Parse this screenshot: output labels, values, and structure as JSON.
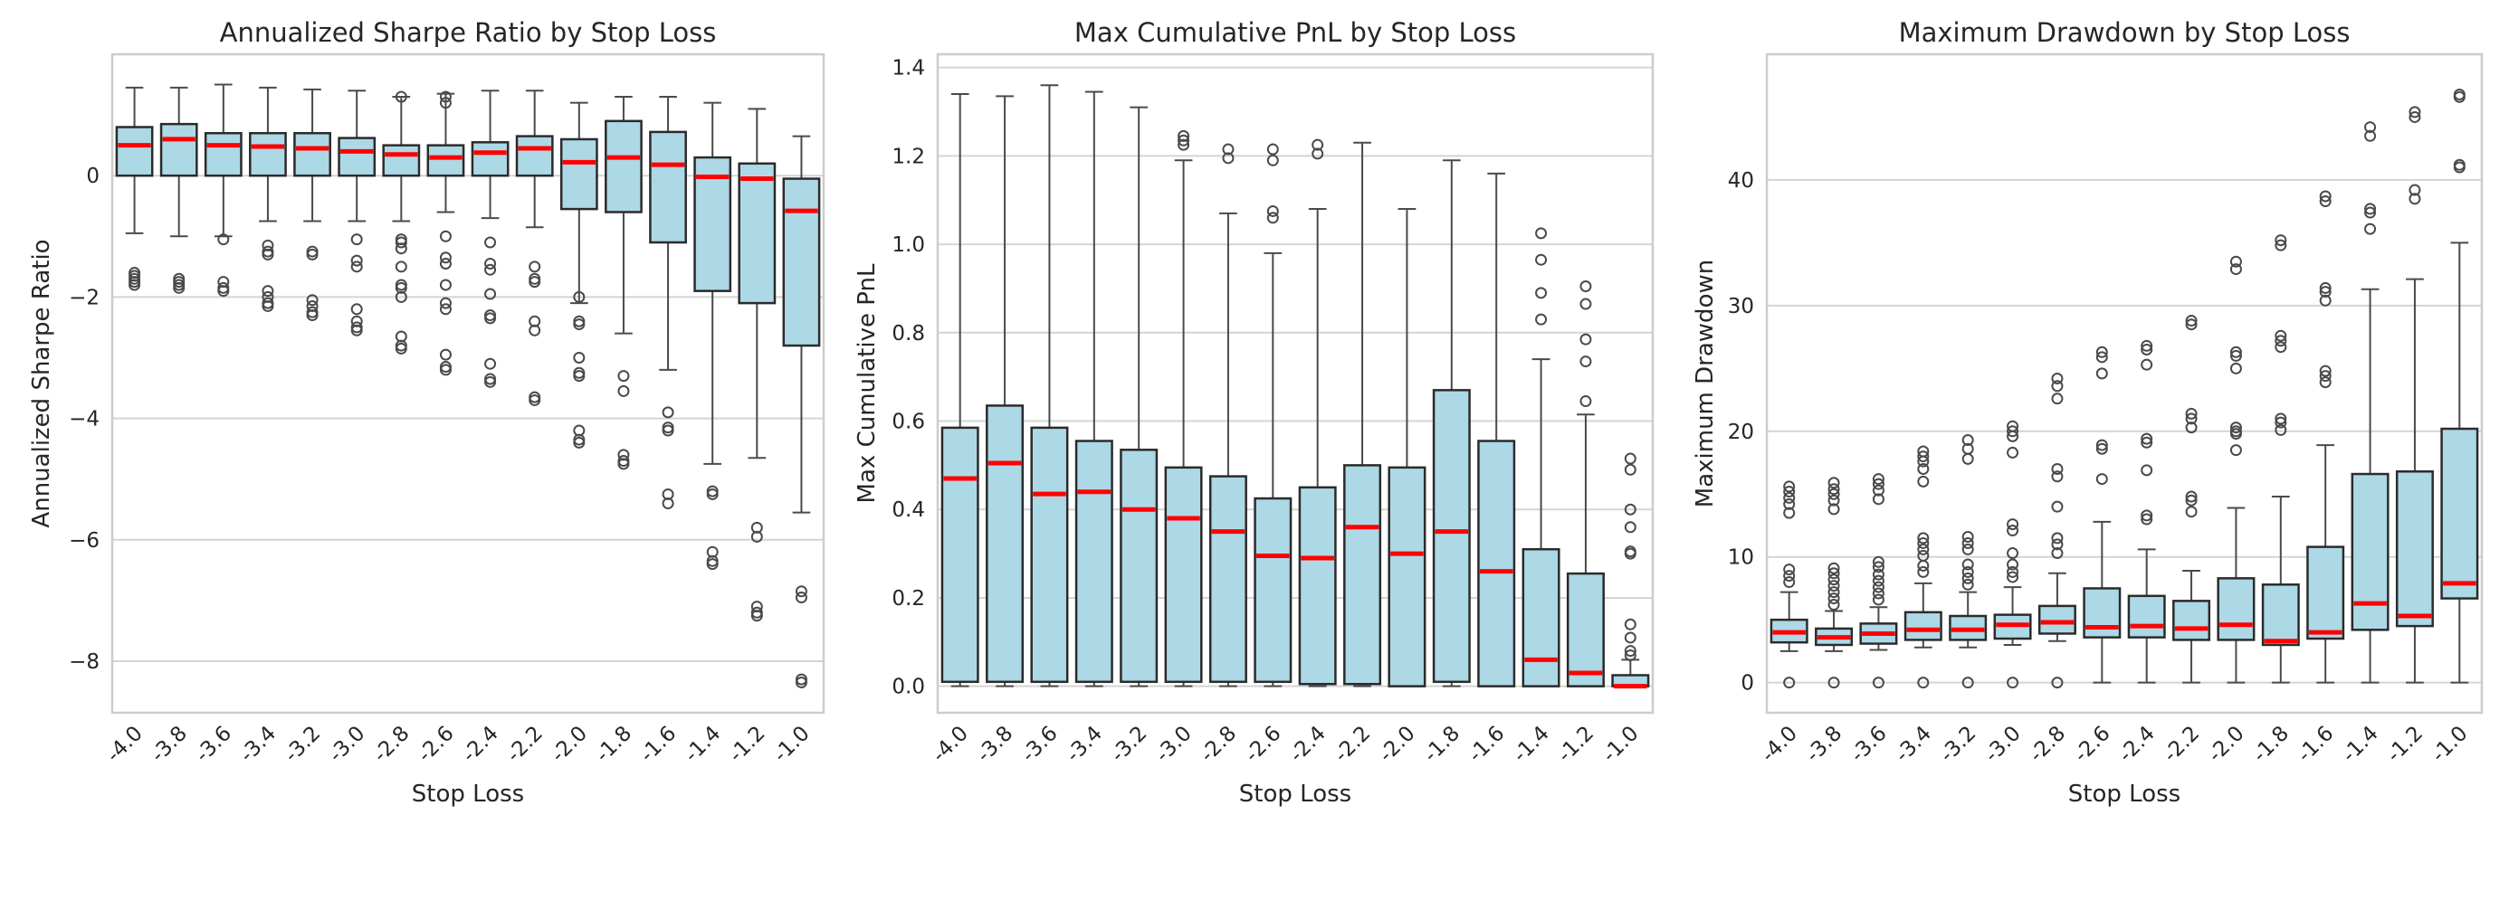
{
  "chart_data": [
    {
      "type": "box",
      "title": "Annualized Sharpe Ratio by Stop Loss",
      "xlabel": "Stop Loss",
      "ylabel": "Annualized Sharpe Ratio",
      "ylim": [
        -8.85,
        2.0
      ],
      "yticks": [
        -8,
        -6,
        -4,
        -2,
        0
      ],
      "ytick_labels": [
        "−8",
        "−6",
        "−4",
        "−2",
        "0"
      ],
      "categories": [
        "-4.0",
        "-3.8",
        "-3.6",
        "-3.4",
        "-3.2",
        "-3.0",
        "-2.8",
        "-2.6",
        "-2.4",
        "-2.2",
        "-2.0",
        "-1.8",
        "-1.6",
        "-1.4",
        "-1.2",
        "-1.0"
      ],
      "boxes": [
        {
          "whislo": -0.95,
          "q1": 0.0,
          "med": 0.5,
          "q3": 0.8,
          "whishi": 1.45,
          "fliers": [
            -1.6,
            -1.65,
            -1.7,
            -1.75,
            -1.8
          ]
        },
        {
          "whislo": -1.0,
          "q1": 0.0,
          "med": 0.6,
          "q3": 0.85,
          "whishi": 1.45,
          "fliers": [
            -1.7,
            -1.75,
            -1.8,
            -1.85
          ]
        },
        {
          "whislo": -1.0,
          "q1": 0.0,
          "med": 0.5,
          "q3": 0.7,
          "whishi": 1.5,
          "fliers": [
            -1.05,
            -1.75,
            -1.85,
            -1.9
          ]
        },
        {
          "whislo": -0.75,
          "q1": 0.0,
          "med": 0.48,
          "q3": 0.7,
          "whishi": 1.45,
          "fliers": [
            -1.15,
            -1.25,
            -1.3,
            -1.9,
            -2.0,
            -2.1,
            -2.15
          ]
        },
        {
          "whislo": -0.75,
          "q1": 0.0,
          "med": 0.45,
          "q3": 0.7,
          "whishi": 1.42,
          "fliers": [
            -1.25,
            -1.3,
            -2.05,
            -2.15,
            -2.25,
            -2.3
          ]
        },
        {
          "whislo": -0.75,
          "q1": 0.0,
          "med": 0.4,
          "q3": 0.62,
          "whishi": 1.4,
          "fliers": [
            -1.05,
            -1.4,
            -1.5,
            -2.2,
            -2.4,
            -2.5,
            -2.55
          ]
        },
        {
          "whislo": -0.75,
          "q1": 0.0,
          "med": 0.35,
          "q3": 0.5,
          "whishi": 1.3,
          "fliers": [
            1.3,
            -1.05,
            -1.1,
            -1.2,
            -1.5,
            -1.8,
            -1.85,
            -2.0,
            -2.65,
            -2.8,
            -2.85
          ]
        },
        {
          "whislo": -0.6,
          "q1": 0.0,
          "med": 0.3,
          "q3": 0.5,
          "whishi": 1.35,
          "fliers": [
            1.3,
            1.2,
            -1.0,
            -1.35,
            -1.45,
            -1.8,
            -2.1,
            -2.2,
            -2.95,
            -3.15,
            -3.2
          ]
        },
        {
          "whislo": -0.7,
          "q1": 0.0,
          "med": 0.38,
          "q3": 0.55,
          "whishi": 1.4,
          "fliers": [
            -1.1,
            -1.45,
            -1.55,
            -1.95,
            -2.3,
            -2.35,
            -3.1,
            -3.35,
            -3.4
          ]
        },
        {
          "whislo": -0.85,
          "q1": 0.0,
          "med": 0.45,
          "q3": 0.65,
          "whishi": 1.4,
          "fliers": [
            -1.5,
            -1.7,
            -1.75,
            -2.4,
            -2.55,
            -3.65,
            -3.7
          ]
        },
        {
          "whislo": -2.1,
          "q1": -0.55,
          "med": 0.22,
          "q3": 0.6,
          "whishi": 1.2,
          "fliers": [
            -2.0,
            -2.4,
            -2.45,
            -3.0,
            -3.25,
            -3.3,
            -4.2,
            -4.35,
            -4.4
          ]
        },
        {
          "whislo": -2.6,
          "q1": -0.6,
          "med": 0.3,
          "q3": 0.9,
          "whishi": 1.3,
          "fliers": [
            -3.3,
            -3.55,
            -4.6,
            -4.7,
            -4.75
          ]
        },
        {
          "whislo": -3.2,
          "q1": -1.1,
          "med": 0.18,
          "q3": 0.72,
          "whishi": 1.3,
          "fliers": [
            -3.9,
            -4.15,
            -4.2,
            -5.25,
            -5.4
          ]
        },
        {
          "whislo": -4.75,
          "q1": -1.9,
          "med": -0.02,
          "q3": 0.3,
          "whishi": 1.2,
          "fliers": [
            -5.2,
            -5.25,
            -6.2,
            -6.35,
            -6.4
          ]
        },
        {
          "whislo": -4.65,
          "q1": -2.1,
          "med": -0.05,
          "q3": 0.2,
          "whishi": 1.1,
          "fliers": [
            -5.8,
            -5.95,
            -7.1,
            -7.2,
            -7.25
          ]
        },
        {
          "whislo": -5.55,
          "q1": -2.8,
          "med": -0.58,
          "q3": -0.05,
          "whishi": 0.65,
          "fliers": [
            -6.85,
            -6.95,
            -8.3,
            -8.35
          ]
        }
      ]
    },
    {
      "type": "box",
      "title": "Max Cumulative PnL by Stop Loss",
      "xlabel": "Stop Loss",
      "ylabel": "Max Cumulative PnL",
      "ylim": [
        -0.06,
        1.43
      ],
      "yticks": [
        0.0,
        0.2,
        0.4,
        0.6,
        0.8,
        1.0,
        1.2,
        1.4
      ],
      "ytick_labels": [
        "0.0",
        "0.2",
        "0.4",
        "0.6",
        "0.8",
        "1.0",
        "1.2",
        "1.4"
      ],
      "categories": [
        "-4.0",
        "-3.8",
        "-3.6",
        "-3.4",
        "-3.2",
        "-3.0",
        "-2.8",
        "-2.6",
        "-2.4",
        "-2.2",
        "-2.0",
        "-1.8",
        "-1.6",
        "-1.4",
        "-1.2",
        "-1.0"
      ],
      "boxes": [
        {
          "whislo": 0.0,
          "q1": 0.01,
          "med": 0.47,
          "q3": 0.585,
          "whishi": 1.34,
          "fliers": []
        },
        {
          "whislo": 0.0,
          "q1": 0.01,
          "med": 0.505,
          "q3": 0.635,
          "whishi": 1.335,
          "fliers": []
        },
        {
          "whislo": 0.0,
          "q1": 0.01,
          "med": 0.435,
          "q3": 0.585,
          "whishi": 1.36,
          "fliers": []
        },
        {
          "whislo": 0.0,
          "q1": 0.01,
          "med": 0.44,
          "q3": 0.555,
          "whishi": 1.345,
          "fliers": []
        },
        {
          "whislo": 0.0,
          "q1": 0.01,
          "med": 0.4,
          "q3": 0.535,
          "whishi": 1.31,
          "fliers": []
        },
        {
          "whislo": 0.0,
          "q1": 0.01,
          "med": 0.38,
          "q3": 0.495,
          "whishi": 1.19,
          "fliers": [
            1.225,
            1.235,
            1.245
          ]
        },
        {
          "whislo": 0.0,
          "q1": 0.01,
          "med": 0.35,
          "q3": 0.475,
          "whishi": 1.07,
          "fliers": [
            1.195,
            1.215
          ]
        },
        {
          "whislo": 0.0,
          "q1": 0.01,
          "med": 0.295,
          "q3": 0.425,
          "whishi": 0.98,
          "fliers": [
            1.06,
            1.075,
            1.19,
            1.215
          ]
        },
        {
          "whislo": 0.0,
          "q1": 0.005,
          "med": 0.29,
          "q3": 0.45,
          "whishi": 1.08,
          "fliers": [
            1.205,
            1.225
          ]
        },
        {
          "whislo": 0.0,
          "q1": 0.005,
          "med": 0.36,
          "q3": 0.5,
          "whishi": 1.23,
          "fliers": []
        },
        {
          "whislo": 0.0,
          "q1": 0.0,
          "med": 0.3,
          "q3": 0.495,
          "whishi": 1.08,
          "fliers": []
        },
        {
          "whislo": 0.0,
          "q1": 0.01,
          "med": 0.35,
          "q3": 0.67,
          "whishi": 1.19,
          "fliers": []
        },
        {
          "whislo": 0.0,
          "q1": 0.0,
          "med": 0.26,
          "q3": 0.555,
          "whishi": 1.16,
          "fliers": []
        },
        {
          "whislo": 0.0,
          "q1": 0.0,
          "med": 0.06,
          "q3": 0.31,
          "whishi": 0.74,
          "fliers": [
            0.83,
            0.89,
            0.965,
            1.025
          ]
        },
        {
          "whislo": 0.0,
          "q1": 0.0,
          "med": 0.03,
          "q3": 0.255,
          "whishi": 0.615,
          "fliers": [
            0.645,
            0.735,
            0.785,
            0.865,
            0.905
          ]
        },
        {
          "whislo": 0.0,
          "q1": 0.0,
          "med": 0.0,
          "q3": 0.025,
          "whishi": 0.06,
          "fliers": [
            0.07,
            0.08,
            0.11,
            0.14,
            0.3,
            0.305,
            0.36,
            0.4,
            0.49,
            0.515
          ]
        }
      ]
    },
    {
      "type": "box",
      "title": "Maximum Drawdown by Stop Loss",
      "xlabel": "Stop Loss",
      "ylabel": "Maximum Drawdown",
      "ylim": [
        -2.4,
        50.0
      ],
      "yticks": [
        0,
        10,
        20,
        30,
        40
      ],
      "ytick_labels": [
        "0",
        "10",
        "20",
        "30",
        "40"
      ],
      "categories": [
        "-4.0",
        "-3.8",
        "-3.6",
        "-3.4",
        "-3.2",
        "-3.0",
        "-2.8",
        "-2.6",
        "-2.4",
        "-2.2",
        "-2.0",
        "-1.8",
        "-1.6",
        "-1.4",
        "-1.2",
        "-1.0"
      ],
      "boxes": [
        {
          "whislo": 2.5,
          "q1": 3.2,
          "med": 4.0,
          "q3": 5.0,
          "whishi": 7.2,
          "fliers": [
            0.0,
            8.0,
            8.5,
            9.0,
            13.5,
            14.2,
            14.7,
            15.2,
            15.6
          ]
        },
        {
          "whislo": 2.5,
          "q1": 3.0,
          "med": 3.6,
          "q3": 4.3,
          "whishi": 5.7,
          "fliers": [
            0.0,
            6.2,
            6.7,
            7.2,
            7.7,
            8.2,
            8.7,
            9.1,
            13.8,
            14.5,
            15.0,
            15.4,
            15.9
          ]
        },
        {
          "whislo": 2.6,
          "q1": 3.1,
          "med": 3.9,
          "q3": 4.7,
          "whishi": 6.0,
          "fliers": [
            0.0,
            6.6,
            7.1,
            7.6,
            8.1,
            8.6,
            9.2,
            9.6,
            14.6,
            15.3,
            15.8,
            16.2
          ]
        },
        {
          "whislo": 2.8,
          "q1": 3.4,
          "med": 4.2,
          "q3": 5.6,
          "whishi": 7.9,
          "fliers": [
            0.0,
            8.8,
            9.3,
            10.1,
            10.6,
            11.1,
            11.5,
            16.0,
            17.0,
            17.6,
            18.0,
            18.4
          ]
        },
        {
          "whislo": 2.8,
          "q1": 3.4,
          "med": 4.2,
          "q3": 5.3,
          "whishi": 7.2,
          "fliers": [
            0.0,
            7.8,
            8.3,
            8.8,
            9.4,
            10.6,
            11.1,
            11.6,
            17.8,
            18.6,
            19.3
          ]
        },
        {
          "whislo": 3.0,
          "q1": 3.5,
          "med": 4.6,
          "q3": 5.4,
          "whishi": 7.6,
          "fliers": [
            0.0,
            8.4,
            8.8,
            9.4,
            10.3,
            12.1,
            12.6,
            18.3,
            19.6,
            20.0,
            20.4
          ]
        },
        {
          "whislo": 3.3,
          "q1": 3.9,
          "med": 4.8,
          "q3": 6.1,
          "whishi": 8.7,
          "fliers": [
            0.0,
            10.3,
            11.0,
            11.5,
            14.0,
            16.4,
            17.0,
            22.6,
            23.6,
            24.2
          ]
        },
        {
          "whislo": 0.0,
          "q1": 3.6,
          "med": 4.4,
          "q3": 7.5,
          "whishi": 12.8,
          "fliers": [
            16.2,
            18.6,
            18.9,
            24.6,
            25.9,
            26.3
          ]
        },
        {
          "whislo": 0.0,
          "q1": 3.6,
          "med": 4.5,
          "q3": 6.9,
          "whishi": 10.6,
          "fliers": [
            13.0,
            13.3,
            16.9,
            19.1,
            19.4,
            25.3,
            26.5,
            26.8
          ]
        },
        {
          "whislo": 0.0,
          "q1": 3.4,
          "med": 4.3,
          "q3": 6.5,
          "whishi": 8.9,
          "fliers": [
            13.6,
            14.5,
            14.8,
            20.3,
            21.0,
            21.4,
            28.5,
            28.8
          ]
        },
        {
          "whislo": 0.0,
          "q1": 3.4,
          "med": 4.6,
          "q3": 8.3,
          "whishi": 13.9,
          "fliers": [
            18.5,
            19.8,
            20.0,
            20.3,
            25.0,
            26.0,
            26.3,
            32.9,
            33.5
          ]
        },
        {
          "whislo": 0.0,
          "q1": 3.0,
          "med": 3.3,
          "q3": 7.8,
          "whishi": 14.8,
          "fliers": [
            20.1,
            20.7,
            21.0,
            26.7,
            27.2,
            27.6,
            34.8,
            35.2
          ]
        },
        {
          "whislo": 0.0,
          "q1": 3.5,
          "med": 4.0,
          "q3": 10.8,
          "whishi": 18.9,
          "fliers": [
            23.9,
            24.4,
            24.8,
            30.4,
            31.1,
            31.4,
            38.3,
            38.7
          ]
        },
        {
          "whislo": 0.0,
          "q1": 4.2,
          "med": 6.3,
          "q3": 16.6,
          "whishi": 31.3,
          "fliers": [
            36.1,
            37.4,
            37.7,
            43.5,
            44.2
          ]
        },
        {
          "whislo": 0.0,
          "q1": 4.5,
          "med": 5.3,
          "q3": 16.8,
          "whishi": 32.1,
          "fliers": [
            38.5,
            39.2,
            45.0,
            45.4
          ]
        },
        {
          "whislo": 0.0,
          "q1": 6.7,
          "med": 7.9,
          "q3": 20.2,
          "whishi": 35.0,
          "fliers": [
            41.0,
            41.2,
            46.6,
            46.8
          ]
        }
      ]
    }
  ]
}
